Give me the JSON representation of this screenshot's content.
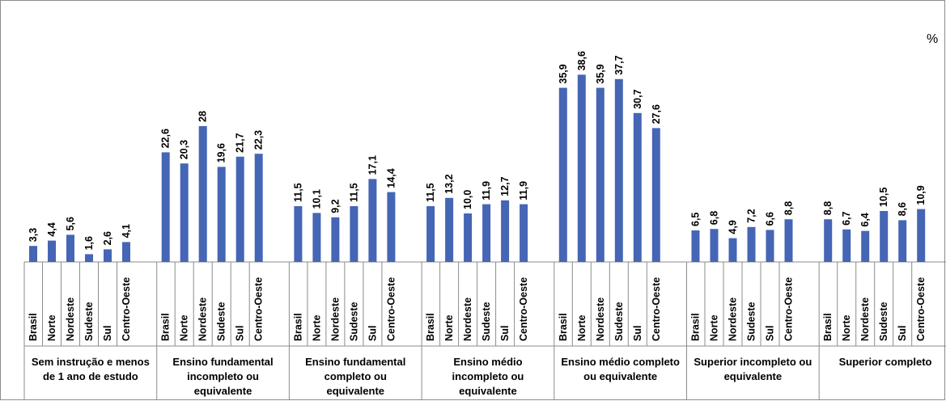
{
  "chart_data": {
    "type": "bar",
    "unit_label": "%",
    "region_labels": [
      "Brasil",
      "Norte",
      "Nordeste",
      "Sudeste",
      "Sul",
      "Centro-Oeste"
    ],
    "bar_color": "#4565b5",
    "groups": [
      {
        "lines": [
          "Sem instrução e menos",
          "de 1 ano de estudo"
        ],
        "values": [
          3.3,
          4.4,
          5.6,
          1.6,
          2.6,
          4.1
        ],
        "labels": [
          "3,3",
          "4,4",
          "5,6",
          "1,6",
          "2,6",
          "4,1"
        ]
      },
      {
        "lines": [
          "Ensino fundamental",
          "incompleto ou",
          "equivalente"
        ],
        "values": [
          22.6,
          20.3,
          28,
          19.6,
          21.7,
          22.3
        ],
        "labels": [
          "22,6",
          "20,3",
          "28",
          "19,6",
          "21,7",
          "22,3"
        ]
      },
      {
        "lines": [
          "Ensino fundamental",
          "completo ou",
          "equivalente"
        ],
        "values": [
          11.5,
          10.1,
          9.2,
          11.5,
          17.1,
          14.4
        ],
        "labels": [
          "11,5",
          "10,1",
          "9,2",
          "11,5",
          "17,1",
          "14,4"
        ]
      },
      {
        "lines": [
          "Ensino médio",
          "incompleto ou",
          "equivalente"
        ],
        "values": [
          11.5,
          13.2,
          10.0,
          11.9,
          12.7,
          11.9
        ],
        "labels": [
          "11,5",
          "13,2",
          "10,0",
          "11,9",
          "12,7",
          "11,9"
        ]
      },
      {
        "lines": [
          "Ensino médio completo",
          "ou equivalente"
        ],
        "values": [
          35.9,
          38.6,
          35.9,
          37.7,
          30.7,
          27.6
        ],
        "labels": [
          "35,9",
          "38,6",
          "35,9",
          "37,7",
          "30,7",
          "27,6"
        ]
      },
      {
        "lines": [
          "Superior incompleto ou",
          "equivalente"
        ],
        "values": [
          6.5,
          6.8,
          4.9,
          7.2,
          6.6,
          8.8
        ],
        "labels": [
          "6,5",
          "6,8",
          "4,9",
          "7,2",
          "6,6",
          "8,8"
        ]
      },
      {
        "lines": [
          "Superior completo"
        ],
        "values": [
          8.8,
          6.7,
          6.4,
          10.5,
          8.6,
          10.9
        ],
        "labels": [
          "8,8",
          "6,7",
          "6,4",
          "10,5",
          "8,6",
          "10,9"
        ]
      }
    ],
    "ylim": [
      0,
      40
    ],
    "grid": false,
    "legend": "none"
  }
}
